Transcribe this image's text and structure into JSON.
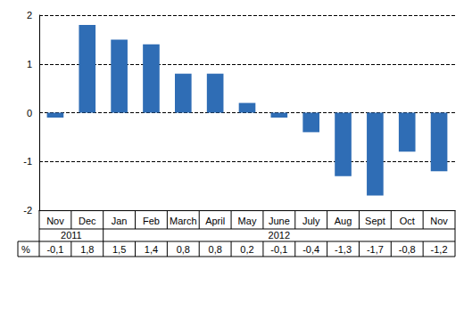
{
  "chart_data": {
    "type": "bar",
    "categories": [
      "Nov",
      "Dec",
      "Jan",
      "Feb",
      "March",
      "April",
      "May",
      "June",
      "July",
      "Aug",
      "Sept",
      "Oct",
      "Nov"
    ],
    "values": [
      -0.1,
      1.8,
      1.5,
      1.4,
      0.8,
      0.8,
      0.2,
      -0.1,
      -0.4,
      -1.3,
      -1.7,
      -0.8,
      -1.2
    ],
    "value_labels": [
      "-0,1",
      "1,8",
      "1,5",
      "1,4",
      "0,8",
      "0,8",
      "0,2",
      "-0,1",
      "-0,4",
      "-1,3",
      "-1,7",
      "-0,8",
      "-1,2"
    ],
    "row_label": "%",
    "year_groups": [
      {
        "label": "2011",
        "count": 2
      },
      {
        "label": "2012",
        "count": 11
      }
    ],
    "color": "#2f6db5",
    "ylim": [
      -2,
      2
    ],
    "yticks": [
      -2,
      -1,
      0,
      1,
      2
    ],
    "grid": true
  }
}
